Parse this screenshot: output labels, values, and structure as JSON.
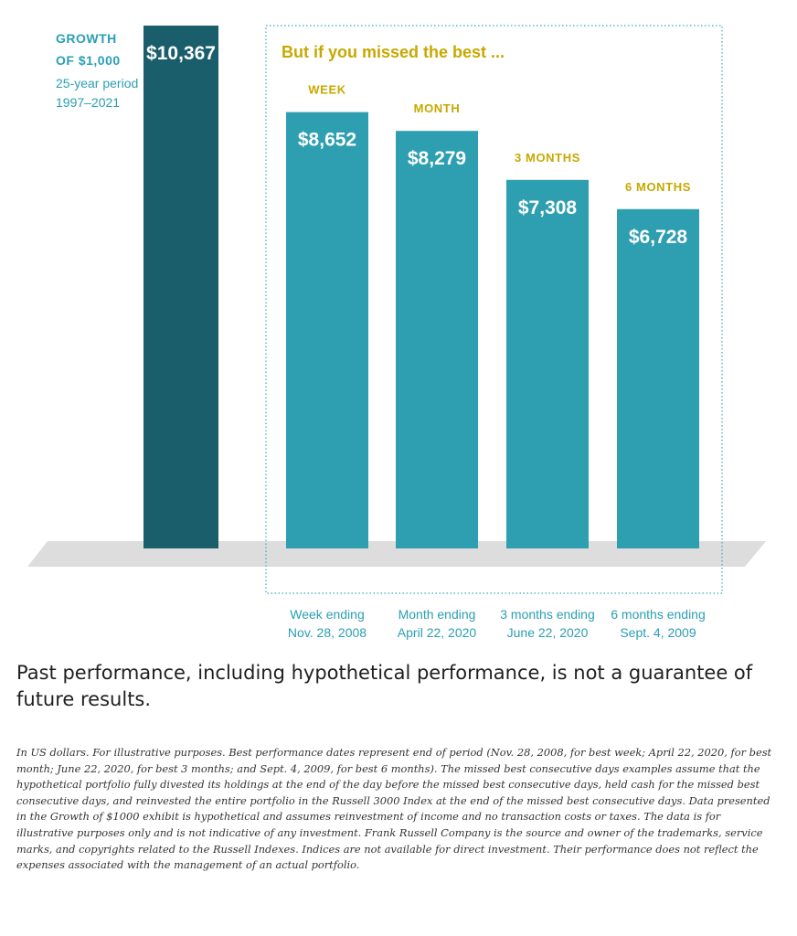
{
  "colors": {
    "main_bar": "#1a5d6b",
    "missed_bar": "#2e9fb0",
    "accent_label": "#c8a800",
    "growth_label": "#2a9fb3",
    "value_text": "#ffffff",
    "box_border": "#3aa9bd",
    "date_label": "#2a9fb3",
    "floor": "#cfcfcf"
  },
  "chart_data": {
    "type": "bar",
    "ylim": [
      0,
      10367
    ],
    "main": {
      "label_lines": [
        "GROWTH",
        "OF $1,000"
      ],
      "period_lines": [
        "25-year period",
        "1997–2021"
      ],
      "value": 10367,
      "value_label": "$10,367"
    },
    "missed": {
      "heading": "But if you missed the best ...",
      "bars": [
        {
          "category": "WEEK",
          "value": 8652,
          "value_label": "$8,652",
          "date_lines": [
            "Week ending",
            "Nov. 28, 2008"
          ]
        },
        {
          "category": "MONTH",
          "value": 8279,
          "value_label": "$8,279",
          "date_lines": [
            "Month ending",
            "April 22, 2020"
          ]
        },
        {
          "category": "3 MONTHS",
          "value": 7308,
          "value_label": "$7,308",
          "date_lines": [
            "3 months ending",
            "June 22, 2020"
          ]
        },
        {
          "category": "6 MONTHS",
          "value": 6728,
          "value_label": "$6,728",
          "date_lines": [
            "6 months ending",
            "Sept. 4, 2009"
          ]
        }
      ]
    }
  },
  "headline": "Past performance, including hypothetical performance, is not a guarantee of future results.",
  "footnote": "In US dollars. For illustrative purposes. Best performance dates represent end of period (Nov. 28, 2008, for best week; April 22, 2020, for best month; June 22, 2020, for best 3 months; and Sept. 4, 2009, for best 6 months). The missed best consecutive days examples assume that the hypothetical portfolio fully divested its holdings at the end of the day before the missed best consecutive days, held cash for the missed best consecutive days, and reinvested the entire portfolio in the Russell 3000 Index at the end of the missed best consecutive days. Data presented in the Growth of $1000 exhibit is hypothetical and assumes reinvestment of income and no transaction costs or taxes. The data is for illustrative purposes only and is not indicative of any investment. Frank Russell Company is the source and owner of the trademarks, service marks, and copyrights related to the Russell Indexes. Indices are not available for direct investment. Their performance does not reflect the expenses associated with the management of an actual portfolio."
}
